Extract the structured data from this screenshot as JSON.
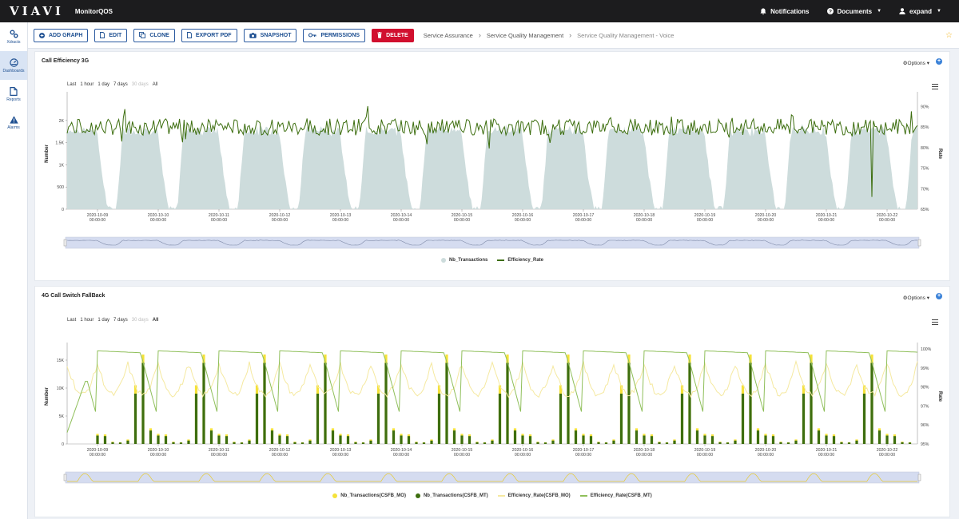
{
  "topbar": {
    "logo": "VIAVI",
    "app_name": "MonitorQOS",
    "notifications": "Notifications",
    "documents": "Documents",
    "user": "expand"
  },
  "sidenav": [
    {
      "label": "Xdracts",
      "icon": "gears-icon"
    },
    {
      "label": "Dashboards",
      "icon": "dashboard-icon",
      "active": true
    },
    {
      "label": "Reports",
      "icon": "document-icon"
    },
    {
      "label": "Alarms",
      "icon": "warning-icon"
    }
  ],
  "toolbar": {
    "add_graph": "ADD GRAPH",
    "edit": "EDIT",
    "clone": "CLONE",
    "export_pdf": "EXPORT PDF",
    "snapshot": "SNAPSHOT",
    "permissions": "PERMISSIONS",
    "delete": "DELETE"
  },
  "breadcrumb": [
    "Service Assurance",
    "Service Quality Management",
    "Service Quality Management - Voice"
  ],
  "colors": {
    "accent": "#1d4f91",
    "danger": "#d10f2e",
    "green": "#3d6e0f",
    "light_green": "#9bc86a",
    "yellow": "#f5e23a",
    "area": "#cddcdc"
  },
  "panels": {
    "p1": {
      "title": "Call Efficiency 3G",
      "options": "Options",
      "range": {
        "label": "Last",
        "options": [
          "1 hour",
          "1 day",
          "7 days",
          "30 days",
          "All"
        ]
      }
    },
    "p2": {
      "title": "4G Call Switch FallBack",
      "options": "Options",
      "range": {
        "label": "Last",
        "options": [
          "1 hour",
          "1 day",
          "7 days",
          "30 days",
          "All"
        ]
      }
    }
  },
  "chart_data": [
    {
      "type": "area",
      "title": "Call Efficiency 3G",
      "xlabel": "",
      "ylabel": "Number",
      "y2label": "Rate",
      "x_ticks": [
        "2020-10-09\n00:00:00",
        "2020-10-10\n00:00:00",
        "2020-10-11\n00:00:00",
        "2020-10-12\n00:00:00",
        "2020-10-13\n00:00:00",
        "2020-10-14\n00:00:00",
        "2020-10-15\n00:00:00",
        "2020-10-16\n00:00:00",
        "2020-10-17\n00:00:00",
        "2020-10-18\n00:00:00",
        "2020-10-19\n00:00:00",
        "2020-10-20\n00:00:00",
        "2020-10-21\n00:00:00",
        "2020-10-22\n00:00:00"
      ],
      "y_ticks": [
        "0",
        "500",
        "1K",
        "1.5K",
        "2K"
      ],
      "y2_ticks": [
        "65%",
        "70%",
        "75%",
        "80%",
        "85%",
        "90%"
      ],
      "ylim": [
        0,
        2500
      ],
      "y2lim": [
        65,
        92
      ],
      "x_range": [
        "2020-10-08 12:00",
        "2020-10-22 12:00"
      ],
      "series": [
        {
          "name": "Nb_Transactions",
          "kind": "area",
          "color": "#cddcdc",
          "daily_peak": 1800,
          "daily_min": 0
        },
        {
          "name": "Efficiency_Rate",
          "kind": "line",
          "color": "#3d6e0f",
          "typical": 85,
          "min": 68
        }
      ],
      "legend": "bottom"
    },
    {
      "type": "bar",
      "title": "4G Call Switch FallBack",
      "xlabel": "",
      "ylabel": "Number",
      "y2label": "Rate",
      "x_ticks": [
        "2020-10-09\n00:00:00",
        "2020-10-10\n00:00:00",
        "2020-10-11\n00:00:00",
        "2020-10-12\n00:00:00",
        "2020-10-13\n00:00:00",
        "2020-10-14\n00:00:00",
        "2020-10-15\n00:00:00",
        "2020-10-16\n00:00:00",
        "2020-10-17\n00:00:00",
        "2020-10-18\n00:00:00",
        "2020-10-19\n00:00:00",
        "2020-10-20\n00:00:00",
        "2020-10-21\n00:00:00",
        "2020-10-22\n00:00:00"
      ],
      "y_ticks": [
        "0",
        "5K",
        "10K",
        "15K"
      ],
      "y2_ticks": [
        "95%",
        "96%",
        "97%",
        "98%",
        "99%",
        "100%"
      ],
      "ylim": [
        0,
        17000
      ],
      "y2lim": [
        95,
        100
      ],
      "x_range": [
        "2020-10-08 12:00",
        "2020-10-22 12:00"
      ],
      "daily_pattern_hours": [
        0,
        3,
        6,
        9,
        12,
        15,
        18,
        21
      ],
      "series": [
        {
          "name": "Nb_Transactions(CSFB_MO)",
          "kind": "bar",
          "color": "#f5e23a",
          "daily_values": [
            1800,
            1700,
            400,
            300,
            800,
            10500,
            16000,
            2800
          ]
        },
        {
          "name": "Nb_Transactions(CSFB_MT)",
          "kind": "bar",
          "color": "#3d6e0f",
          "daily_values": [
            1500,
            1400,
            300,
            250,
            600,
            9000,
            14500,
            2400
          ]
        },
        {
          "name": "Efficiency_Rate(CSFB_MO)",
          "kind": "line",
          "color": "#f5e9a0",
          "range": [
            96.2,
            99.9
          ]
        },
        {
          "name": "Efficiency_Rate(CSFB_MT)",
          "kind": "line",
          "color": "#8fbf5a",
          "range": [
            95.5,
            99.9
          ]
        }
      ],
      "legend": "bottom"
    }
  ]
}
